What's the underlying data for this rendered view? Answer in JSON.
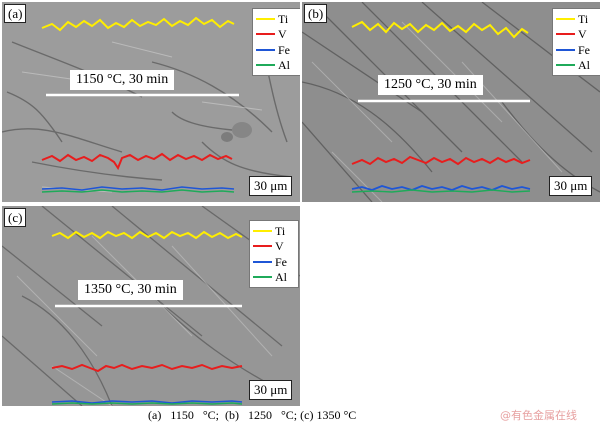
{
  "colors": {
    "Ti": "#ffee00",
    "V": "#e81d1d",
    "Fe": "#1f56d6",
    "Al": "#1faa5a"
  },
  "panels": [
    {
      "label": "(a)",
      "condition": "1150 °C, 30 min",
      "scale": "30 μm",
      "legend": [
        "Ti",
        "V",
        "Fe",
        "Al"
      ]
    },
    {
      "label": "(b)",
      "condition": "1250 °C, 30 min",
      "scale": "30 μm",
      "legend": [
        "Ti",
        "V",
        "Fe",
        "Al"
      ]
    },
    {
      "label": "(c)",
      "condition": "1350 °C, 30 min",
      "scale": "30 μm",
      "legend": [
        "Ti",
        "V",
        "Fe",
        "Al"
      ]
    }
  ],
  "caption": "(a)   1150   °C;  (b)   1250   °C; (c) 1350 °C",
  "watermark": "@有色金属在线"
}
